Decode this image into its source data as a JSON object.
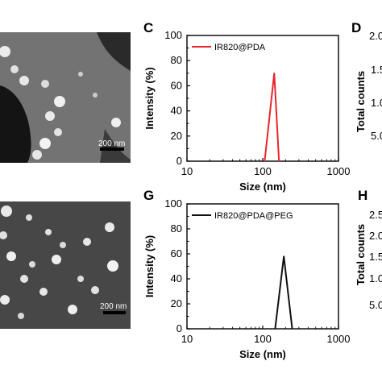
{
  "panels": {
    "c_label": "C",
    "d_label": "D",
    "g_label": "G",
    "h_label": "H"
  },
  "sem": {
    "top_scale_label": "200 nm",
    "bottom_scale_label": "200 nm"
  },
  "right_panels": {
    "d_ylabel": "Total counts",
    "d_ticks": [
      "2.0",
      "1.5",
      "1.0",
      "5.0"
    ],
    "h_ylabel": "Total counts",
    "h_ticks": [
      "2.5",
      "2.0",
      "1.5",
      "1.0",
      "5.0"
    ]
  },
  "chart_data": [
    {
      "type": "line",
      "panel": "C",
      "xscale": "log",
      "xlim": [
        10,
        1000
      ],
      "ylim": [
        0,
        100
      ],
      "xticks": [
        10,
        100,
        1000
      ],
      "yticks": [
        0,
        20,
        40,
        60,
        80,
        100
      ],
      "xlabel": "Size (nm)",
      "ylabel": "Intensity (%)",
      "color": "#e8262b",
      "legend_position": "top-left",
      "series": [
        {
          "name": "IR820@PDA",
          "x": [
            106,
            142,
            164
          ],
          "y": [
            0,
            70,
            0
          ]
        }
      ]
    },
    {
      "type": "line",
      "panel": "G",
      "xscale": "log",
      "xlim": [
        10,
        1000
      ],
      "ylim": [
        0,
        100
      ],
      "xticks": [
        10,
        100,
        1000
      ],
      "yticks": [
        0,
        20,
        40,
        60,
        80,
        100
      ],
      "xlabel": "Size (nm)",
      "ylabel": "Intensity (%)",
      "color": "#111111",
      "legend_position": "top-left",
      "series": [
        {
          "name": "IR820@PDA@PEG",
          "x": [
            146,
            190,
            245
          ],
          "y": [
            0,
            58,
            0
          ]
        }
      ]
    }
  ]
}
